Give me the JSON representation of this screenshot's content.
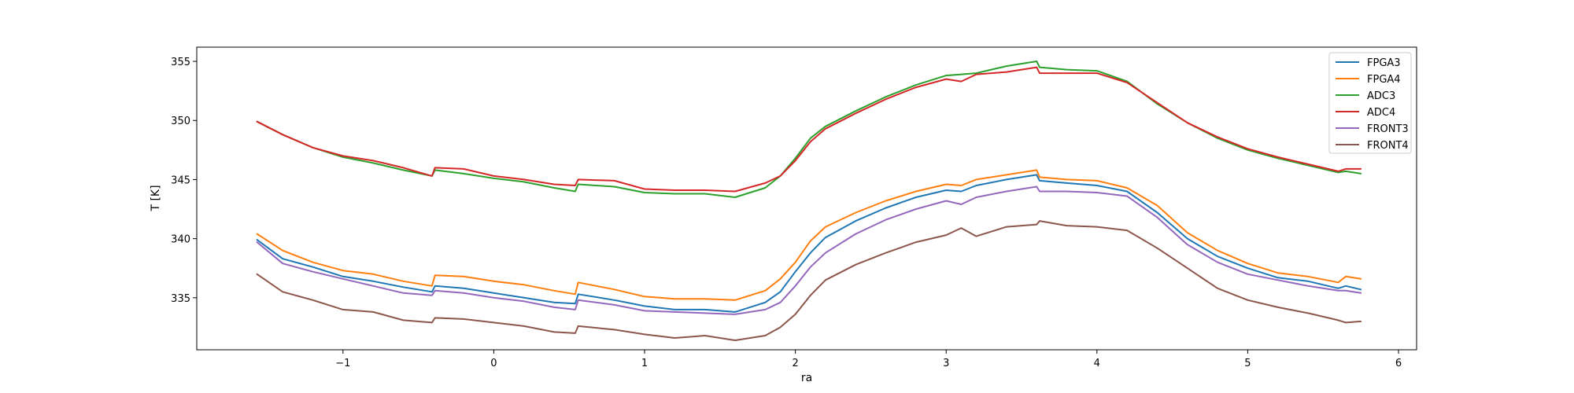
{
  "chart_data": {
    "type": "line",
    "title": "",
    "xlabel": "ra",
    "ylabel": "T [K]",
    "xlim": [
      -1.97,
      6.12
    ],
    "ylim": [
      330.6,
      356.2
    ],
    "xticks": [
      -1,
      0,
      1,
      2,
      3,
      4,
      5,
      6
    ],
    "yticks": [
      335,
      340,
      345,
      350,
      355
    ],
    "xtick_labels": [
      "−1",
      "0",
      "1",
      "2",
      "3",
      "4",
      "5",
      "6"
    ],
    "ytick_labels": [
      "335",
      "340",
      "345",
      "350",
      "355"
    ],
    "grid": false,
    "legend_position": "top-right",
    "x": [
      -1.57,
      -1.4,
      -1.2,
      -1.0,
      -0.8,
      -0.6,
      -0.41,
      -0.39,
      -0.2,
      0.0,
      0.2,
      0.4,
      0.54,
      0.56,
      0.8,
      1.0,
      1.2,
      1.4,
      1.6,
      1.8,
      1.9,
      2.0,
      2.1,
      2.2,
      2.4,
      2.6,
      2.8,
      3.0,
      3.1,
      3.2,
      3.4,
      3.6,
      3.62,
      3.8,
      4.0,
      4.2,
      4.4,
      4.6,
      4.8,
      5.0,
      5.2,
      5.4,
      5.6,
      5.65,
      5.75
    ],
    "series": [
      {
        "name": "FPGA3",
        "color": "#1f77b4",
        "values": [
          339.9,
          338.3,
          337.6,
          336.8,
          336.4,
          335.9,
          335.5,
          336.0,
          335.8,
          335.4,
          335.0,
          334.6,
          334.5,
          335.3,
          334.8,
          334.3,
          334.0,
          334.0,
          333.8,
          334.6,
          335.5,
          337.2,
          338.8,
          340.1,
          341.5,
          342.6,
          343.5,
          344.1,
          344.0,
          344.5,
          345.0,
          345.4,
          344.9,
          344.7,
          344.5,
          344.0,
          342.2,
          340.0,
          338.5,
          337.5,
          336.7,
          336.4,
          335.8,
          336.0,
          335.7
        ]
      },
      {
        "name": "FPGA4",
        "color": "#ff7f0e",
        "values": [
          340.4,
          339.0,
          338.0,
          337.3,
          337.0,
          336.4,
          336.0,
          336.9,
          336.8,
          336.4,
          336.1,
          335.6,
          335.3,
          336.3,
          335.7,
          335.1,
          334.9,
          334.9,
          334.8,
          335.6,
          336.6,
          338.0,
          339.8,
          341.0,
          342.2,
          343.2,
          344.0,
          344.6,
          344.5,
          345.0,
          345.4,
          345.8,
          345.2,
          345.0,
          344.9,
          344.3,
          342.8,
          340.5,
          339.0,
          337.9,
          337.1,
          336.8,
          336.3,
          336.8,
          336.6
        ]
      },
      {
        "name": "ADC3",
        "color": "#2ca02c",
        "values": [
          349.9,
          348.8,
          347.7,
          346.9,
          346.4,
          345.8,
          345.3,
          345.8,
          345.5,
          345.1,
          344.8,
          344.3,
          344.0,
          344.6,
          344.4,
          343.9,
          343.8,
          343.8,
          343.5,
          344.3,
          345.3,
          346.8,
          348.5,
          349.5,
          350.8,
          352.0,
          353.0,
          353.8,
          353.9,
          354.0,
          354.6,
          355.0,
          354.5,
          354.3,
          354.2,
          353.3,
          351.4,
          349.8,
          348.5,
          347.5,
          346.8,
          346.2,
          345.6,
          345.7,
          345.5
        ]
      },
      {
        "name": "ADC4",
        "color": "#d62728",
        "values": [
          349.9,
          348.8,
          347.7,
          347.0,
          346.6,
          346.0,
          345.3,
          346.0,
          345.9,
          345.3,
          345.0,
          344.6,
          344.5,
          345.0,
          344.9,
          344.2,
          344.1,
          344.1,
          344.0,
          344.7,
          345.3,
          346.6,
          348.2,
          349.3,
          350.6,
          351.8,
          352.8,
          353.5,
          353.3,
          353.9,
          354.1,
          354.5,
          354.0,
          354.0,
          354.0,
          353.2,
          351.5,
          349.8,
          348.6,
          347.6,
          346.9,
          346.3,
          345.7,
          345.9,
          345.9
        ]
      },
      {
        "name": "FRONT3",
        "color": "#9467bd",
        "values": [
          339.7,
          337.9,
          337.2,
          336.6,
          336.0,
          335.4,
          335.2,
          335.6,
          335.4,
          335.0,
          334.7,
          334.2,
          334.0,
          334.8,
          334.4,
          333.9,
          333.8,
          333.7,
          333.6,
          334.0,
          334.6,
          336.0,
          337.6,
          338.8,
          340.4,
          341.6,
          342.5,
          343.2,
          342.9,
          343.5,
          344.0,
          344.4,
          344.0,
          344.0,
          343.9,
          343.6,
          341.8,
          339.5,
          338.0,
          337.0,
          336.5,
          336.0,
          335.6,
          335.6,
          335.4
        ]
      },
      {
        "name": "FRONT4",
        "color": "#8c564b",
        "values": [
          337.0,
          335.5,
          334.8,
          334.0,
          333.8,
          333.1,
          332.9,
          333.3,
          333.2,
          332.9,
          332.6,
          332.1,
          332.0,
          332.6,
          332.3,
          331.9,
          331.6,
          331.8,
          331.4,
          331.8,
          332.5,
          333.6,
          335.2,
          336.5,
          337.8,
          338.8,
          339.7,
          340.3,
          340.9,
          340.2,
          341.0,
          341.2,
          341.5,
          341.1,
          341.0,
          340.7,
          339.2,
          337.5,
          335.8,
          334.8,
          334.2,
          333.7,
          333.1,
          332.9,
          333.0
        ]
      }
    ]
  }
}
